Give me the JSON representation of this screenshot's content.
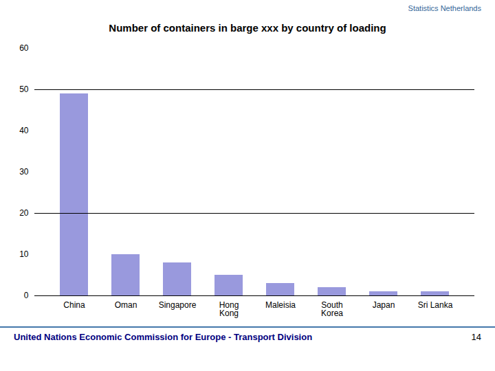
{
  "chart_data": {
    "type": "bar",
    "title": "Number of containers in barge xxx by country of loading",
    "categories": [
      "China",
      "Oman",
      "Singapore",
      "Hong\nKong",
      "Maleisia",
      "South\nKorea",
      "Japan",
      "Sri Lanka"
    ],
    "values": [
      49,
      10,
      8,
      5,
      3,
      2,
      1,
      1
    ],
    "color": "#9999dd",
    "ylim": [
      0,
      60
    ],
    "yticks": [
      0,
      10,
      20,
      30,
      40,
      50,
      60
    ],
    "grid": false,
    "hlines": [
      20,
      50
    ],
    "annotations": [
      "Statistics Netherlands",
      "United Nations Economic Commission for Europe - Transport Division",
      "14"
    ]
  }
}
